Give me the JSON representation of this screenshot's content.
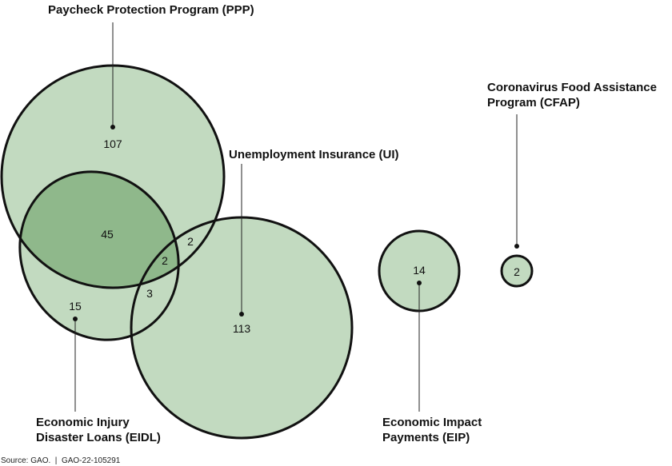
{
  "colors": {
    "fill": "#c2dac0",
    "overlap_fill": "#8fb88b",
    "stroke": "#111111"
  },
  "programs": {
    "ppp": {
      "label_line1": "Paycheck Protection Program (PPP)"
    },
    "ui": {
      "label_line1": "Unemployment Insurance (UI)"
    },
    "eidl": {
      "label_line1": "Economic Injury",
      "label_line2": "Disaster Loans (EIDL)"
    },
    "eip": {
      "label_line1": "Economic Impact",
      "label_line2": "Payments (EIP)"
    },
    "cfap": {
      "label_line1": "Coronavirus Food Assistance",
      "label_line2": "Program (CFAP)"
    }
  },
  "counts": {
    "ppp_only": "107",
    "ppp_eidl": "45",
    "ppp_ui": "2",
    "ppp_eidl_ui": "2",
    "eidl_ui": "3",
    "eidl_only": "15",
    "ui_only": "113",
    "eip_only": "14",
    "cfap_only": "2"
  },
  "source": "Source: GAO.  |  GAO-22-105291"
}
